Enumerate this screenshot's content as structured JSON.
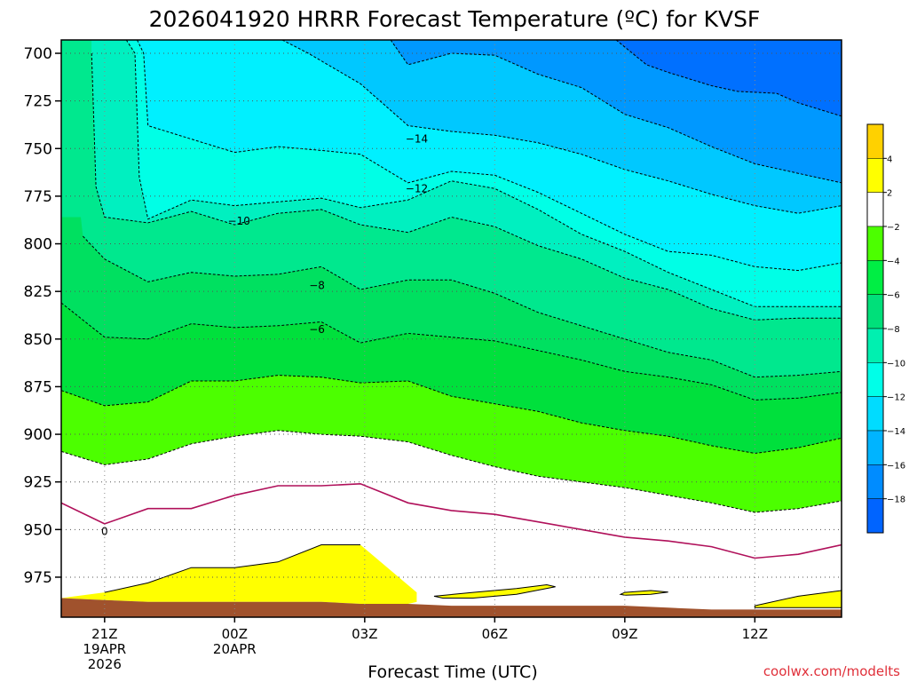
{
  "chart_data": {
    "type": "contour",
    "title": "2026041920 HRRR Forecast Temperature (ºC) for KVSF",
    "xlabel": "Forecast Time (UTC)",
    "credit": "coolwx.com/modelts",
    "y_ticks": [
      "700",
      "725",
      "750",
      "775",
      "800",
      "825",
      "850",
      "875",
      "900",
      "925",
      "950",
      "975"
    ],
    "y_range_hPa": [
      693,
      996
    ],
    "x_range_hours": [
      -1,
      17
    ],
    "x_ticks": [
      {
        "hour": 0,
        "lines": [
          "21Z",
          "19APR",
          "2026"
        ]
      },
      {
        "hour": 3,
        "lines": [
          "00Z",
          "20APR"
        ]
      },
      {
        "hour": 6,
        "lines": [
          "03Z"
        ]
      },
      {
        "hour": 9,
        "lines": [
          "06Z"
        ]
      },
      {
        "hour": 12,
        "lines": [
          "09Z"
        ]
      },
      {
        "hour": 15,
        "lines": [
          "12Z"
        ]
      }
    ],
    "grid": true,
    "contours": [
      {
        "level": 4,
        "style": "solid",
        "color": "#000000",
        "points": [
          [
            0,
            983
          ],
          [
            1,
            978
          ],
          [
            2,
            970
          ],
          [
            3,
            970
          ],
          [
            4,
            967
          ],
          [
            5,
            958
          ],
          [
            5.9,
            958
          ]
        ]
      },
      {
        "level": 0,
        "style": "solid",
        "color": "#b0105a",
        "points": [
          [
            -1,
            936
          ],
          [
            0,
            947
          ],
          [
            1,
            939
          ],
          [
            2,
            939
          ],
          [
            3,
            932
          ],
          [
            4,
            927
          ],
          [
            5,
            927
          ],
          [
            5.9,
            926
          ],
          [
            7,
            936
          ],
          [
            8,
            940
          ],
          [
            9,
            942
          ],
          [
            10,
            946
          ],
          [
            11,
            950
          ],
          [
            12,
            954
          ],
          [
            13,
            956
          ],
          [
            14,
            959
          ],
          [
            15,
            965
          ],
          [
            16,
            963
          ],
          [
            17,
            958
          ]
        ]
      },
      {
        "level": -2,
        "style": "dashed",
        "color": "#000000",
        "points": [
          [
            -1,
            909
          ],
          [
            0,
            916
          ],
          [
            1,
            913
          ],
          [
            2,
            905
          ],
          [
            3,
            901
          ],
          [
            4,
            898
          ],
          [
            5,
            900
          ],
          [
            5.9,
            901
          ],
          [
            7,
            904
          ],
          [
            8,
            911
          ],
          [
            9,
            917
          ],
          [
            10,
            922
          ],
          [
            11,
            925
          ],
          [
            12,
            928
          ],
          [
            13,
            932
          ],
          [
            14,
            936
          ],
          [
            15,
            941
          ],
          [
            16,
            939
          ],
          [
            17,
            935
          ]
        ]
      },
      {
        "level": -4,
        "style": "dashed",
        "color": "#000000",
        "points": [
          [
            -1,
            877
          ],
          [
            0,
            885
          ],
          [
            1,
            883
          ],
          [
            2,
            872
          ],
          [
            3,
            872
          ],
          [
            4,
            869
          ],
          [
            5,
            870
          ],
          [
            5.9,
            873
          ],
          [
            7,
            872
          ],
          [
            8,
            880
          ],
          [
            9,
            884
          ],
          [
            10,
            888
          ],
          [
            11,
            894
          ],
          [
            12,
            898
          ],
          [
            13,
            901
          ],
          [
            14,
            906
          ],
          [
            15,
            910
          ],
          [
            16,
            907
          ],
          [
            17,
            902
          ]
        ]
      },
      {
        "level": -6,
        "style": "dashed",
        "color": "#000000",
        "label_at": [
          4.9,
          845
        ],
        "points": [
          [
            -1,
            831
          ],
          [
            0,
            849
          ],
          [
            1,
            850
          ],
          [
            2,
            842
          ],
          [
            3,
            844
          ],
          [
            4,
            843
          ],
          [
            5,
            841
          ],
          [
            5.9,
            852
          ],
          [
            7,
            847
          ],
          [
            8,
            849
          ],
          [
            9,
            851
          ],
          [
            10,
            856
          ],
          [
            11,
            861
          ],
          [
            12,
            867
          ],
          [
            13,
            870
          ],
          [
            14,
            874
          ],
          [
            15,
            882
          ],
          [
            16,
            881
          ],
          [
            17,
            878
          ]
        ]
      },
      {
        "level": -8,
        "style": "dashed",
        "color": "#000000",
        "label_at": [
          4.9,
          822
        ],
        "points": [
          [
            -0.5,
            796
          ],
          [
            0,
            808
          ],
          [
            1,
            820
          ],
          [
            2,
            815
          ],
          [
            3,
            817
          ],
          [
            4,
            816
          ],
          [
            5,
            812
          ],
          [
            5.9,
            824
          ],
          [
            7,
            819
          ],
          [
            8,
            819
          ],
          [
            9,
            826
          ],
          [
            10,
            836
          ],
          [
            11,
            843
          ],
          [
            12,
            850
          ],
          [
            13,
            857
          ],
          [
            14,
            861
          ],
          [
            15,
            870
          ],
          [
            16,
            869
          ],
          [
            17,
            867
          ]
        ]
      },
      {
        "level": -10,
        "style": "dashed",
        "color": "#000000",
        "label_at": [
          3.1,
          788
        ],
        "points": [
          [
            -0.3,
            700
          ],
          [
            -0.2,
            770
          ],
          [
            0,
            786
          ],
          [
            1,
            789
          ],
          [
            2,
            783
          ],
          [
            3,
            790
          ],
          [
            4,
            784
          ],
          [
            5,
            782
          ],
          [
            5.9,
            790
          ],
          [
            7,
            794
          ],
          [
            8,
            786
          ],
          [
            9,
            791
          ],
          [
            10,
            801
          ],
          [
            11,
            808
          ],
          [
            12,
            818
          ],
          [
            13,
            824
          ],
          [
            14,
            834
          ],
          [
            15,
            840
          ],
          [
            16,
            839
          ],
          [
            17,
            839
          ]
        ]
      },
      {
        "level": -12,
        "style": "dashed",
        "color": "#000000",
        "label_at": [
          7.2,
          771
        ],
        "points": [
          [
            0.5,
            693
          ],
          [
            0.7,
            700
          ],
          [
            0.8,
            765
          ],
          [
            1,
            787
          ],
          [
            2,
            777
          ],
          [
            3,
            780
          ],
          [
            4,
            778
          ],
          [
            5,
            776
          ],
          [
            5.9,
            781
          ],
          [
            7,
            777
          ],
          [
            8,
            767
          ],
          [
            9,
            771
          ],
          [
            10,
            782
          ],
          [
            11,
            795
          ],
          [
            12,
            804
          ],
          [
            13,
            815
          ],
          [
            14,
            824
          ],
          [
            15,
            833
          ],
          [
            16,
            833
          ],
          [
            17,
            833
          ]
        ]
      },
      {
        "level": -14,
        "style": "dashed",
        "color": "#000000",
        "label_at": [
          7.2,
          745
        ],
        "points": [
          [
            0.75,
            693
          ],
          [
            0.9,
            700
          ],
          [
            1,
            738
          ],
          [
            2,
            745
          ],
          [
            3,
            752
          ],
          [
            4,
            749
          ],
          [
            5,
            751
          ],
          [
            5.9,
            753
          ],
          [
            7,
            768
          ],
          [
            8,
            762
          ],
          [
            9,
            764
          ],
          [
            10,
            773
          ],
          [
            11,
            784
          ],
          [
            12,
            795
          ],
          [
            13,
            804
          ],
          [
            14,
            806
          ],
          [
            15,
            812
          ],
          [
            16,
            814
          ],
          [
            17,
            810
          ]
        ]
      },
      {
        "level": -16,
        "style": "dashed",
        "color": "#000000",
        "points": [
          [
            4.1,
            693
          ],
          [
            4.7,
            700
          ],
          [
            5,
            704
          ],
          [
            5.9,
            716
          ],
          [
            7,
            738
          ],
          [
            8,
            741
          ],
          [
            9,
            743
          ],
          [
            10,
            747
          ],
          [
            11,
            753
          ],
          [
            12,
            761
          ],
          [
            13,
            767
          ],
          [
            14,
            774
          ],
          [
            15,
            780
          ],
          [
            16,
            784
          ],
          [
            17,
            780
          ]
        ]
      },
      {
        "level": -18,
        "style": "dashed",
        "color": "#000000",
        "points": [
          [
            6.6,
            693
          ],
          [
            7,
            706
          ],
          [
            8,
            700
          ],
          [
            9,
            701
          ],
          [
            10,
            711
          ],
          [
            11,
            718
          ],
          [
            12,
            732
          ],
          [
            13,
            739
          ],
          [
            14,
            749
          ],
          [
            15,
            758
          ],
          [
            16,
            763
          ],
          [
            17,
            768
          ]
        ]
      },
      {
        "level": -20,
        "style": "dashed",
        "color": "#000000",
        "points": [
          [
            11.8,
            693
          ],
          [
            12.5,
            706
          ],
          [
            13,
            710
          ],
          [
            14,
            717
          ],
          [
            14.6,
            720
          ],
          [
            15.5,
            721
          ],
          [
            16,
            726
          ],
          [
            17,
            733
          ]
        ]
      }
    ],
    "terrain": [
      [
        -1,
        986
      ],
      [
        0,
        987
      ],
      [
        1,
        988
      ],
      [
        2,
        988
      ],
      [
        3,
        988
      ],
      [
        4,
        988
      ],
      [
        5,
        988
      ],
      [
        5.9,
        989
      ],
      [
        7,
        989
      ],
      [
        8,
        990
      ],
      [
        9,
        990
      ],
      [
        10,
        990
      ],
      [
        11,
        990
      ],
      [
        12,
        990
      ],
      [
        13,
        991
      ],
      [
        14,
        992
      ],
      [
        15,
        992
      ],
      [
        16,
        992
      ],
      [
        17,
        992
      ]
    ],
    "fills": [
      {
        "name": "above_4",
        "color": "#ffff00",
        "boundary": "c4"
      },
      {
        "name": "warm_lens_1",
        "color": "#ffff00",
        "points": [
          [
            7.6,
            985
          ],
          [
            8.5,
            983
          ],
          [
            9.5,
            981
          ],
          [
            10.2,
            979
          ],
          [
            10.4,
            980
          ],
          [
            9.5,
            984
          ],
          [
            8.5,
            986
          ],
          [
            7.8,
            986
          ]
        ]
      },
      {
        "name": "warm_lens_2",
        "color": "#ffff00",
        "points": [
          [
            12.0,
            983
          ],
          [
            12.6,
            982
          ],
          [
            13.0,
            982.8
          ],
          [
            12.6,
            984
          ],
          [
            12.0,
            984.5
          ],
          [
            11.9,
            984
          ]
        ]
      },
      {
        "name": "warm_lens_3",
        "color": "#ffff00",
        "points": [
          [
            15.0,
            990
          ],
          [
            16,
            985
          ],
          [
            17,
            982
          ],
          [
            17,
            991
          ],
          [
            15.0,
            991
          ]
        ]
      }
    ],
    "colorbar": {
      "labels": [
        "4",
        "2",
        "−2",
        "−4",
        "−6",
        "−8",
        "−10",
        "−12",
        "−14",
        "−16",
        "−18"
      ],
      "colors": [
        "#ffd100",
        "#ffff00",
        "#ffffff",
        "#4cff00",
        "#00ee44",
        "#00e07a",
        "#00f0b0",
        "#00ffe8",
        "#00dcff",
        "#00b4ff",
        "#008cff",
        "#0064ff"
      ]
    },
    "band_colors": {
      "above_4": "#ffff00",
      "b0_4": "#ffffff",
      "bm2_0": "#ffffff",
      "bm4_m2": "#4cff00",
      "bm6_m4": "#00e03c",
      "bm8_m6": "#00e060",
      "bm10_m8": "#00e88e",
      "bm12_m10": "#00f0c0",
      "bm14_m12": "#00ffe6",
      "bm16_m14": "#00f0ff",
      "bm18_m16": "#00c8ff",
      "bm20_m18": "#0098ff",
      "below_m20": "#0070ff",
      "terrain": "#a0522d"
    }
  }
}
